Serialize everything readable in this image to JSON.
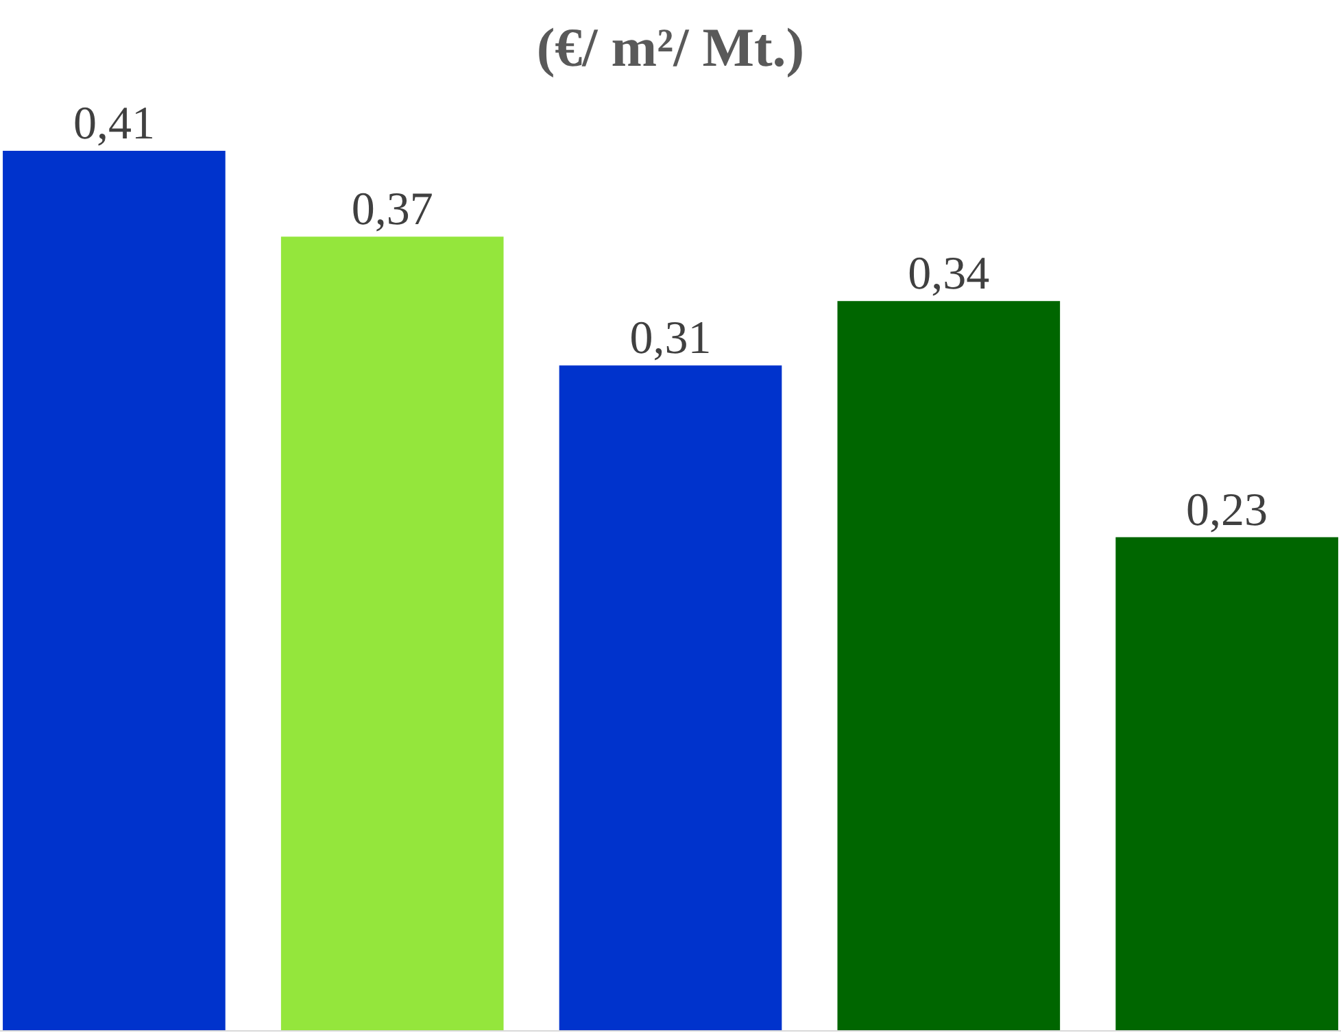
{
  "chart_data": {
    "type": "bar",
    "title": "(€/ m²/ Mt.)",
    "categories": [
      null,
      null,
      null,
      null,
      null
    ],
    "values": [
      0.41,
      0.37,
      0.31,
      0.34,
      0.23
    ],
    "value_labels": [
      "0,41",
      "0,37",
      "0,31",
      "0,34",
      "0,23"
    ],
    "colors": [
      "#0033cc",
      "#94e63c",
      "#0033cc",
      "#006600",
      "#006600"
    ]
  }
}
